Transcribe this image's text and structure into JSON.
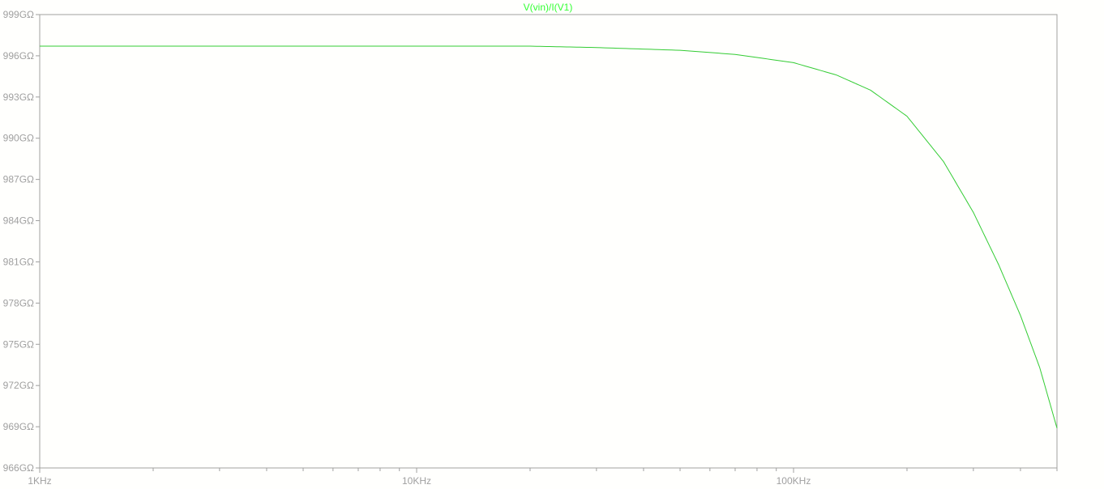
{
  "chart_data": {
    "type": "line",
    "title": "V(vin)/I(V1)",
    "xlabel": "",
    "ylabel": "",
    "x_scale": "log",
    "xlim": [
      1000,
      500000
    ],
    "ylim": [
      966,
      999
    ],
    "x_ticks": [
      {
        "value": 1000,
        "label": "1KHz"
      },
      {
        "value": 10000,
        "label": "10KHz"
      },
      {
        "value": 100000,
        "label": "100KHz"
      }
    ],
    "y_ticks": [
      {
        "value": 999,
        "label": "999GΩ"
      },
      {
        "value": 996,
        "label": "996GΩ"
      },
      {
        "value": 993,
        "label": "993GΩ"
      },
      {
        "value": 990,
        "label": "990GΩ"
      },
      {
        "value": 987,
        "label": "987GΩ"
      },
      {
        "value": 984,
        "label": "984GΩ"
      },
      {
        "value": 981,
        "label": "981GΩ"
      },
      {
        "value": 978,
        "label": "978GΩ"
      },
      {
        "value": 975,
        "label": "975GΩ"
      },
      {
        "value": 972,
        "label": "972GΩ"
      },
      {
        "value": 969,
        "label": "969GΩ"
      },
      {
        "value": 966,
        "label": "966GΩ"
      }
    ],
    "grid": false,
    "colors": {
      "trace": "#33cc33",
      "axis": "#a0a0a0",
      "background": "#fffffd"
    },
    "series": [
      {
        "x": [
          1000,
          2000,
          5000,
          10000,
          20000,
          30000,
          50000,
          70000,
          100000,
          130000,
          160000,
          200000,
          250000,
          300000,
          350000,
          400000,
          450000,
          500000
        ],
        "values": [
          996.7,
          996.7,
          996.7,
          996.7,
          996.7,
          996.6,
          996.4,
          996.1,
          995.5,
          994.6,
          993.5,
          991.6,
          988.3,
          984.6,
          980.8,
          977.1,
          973.3,
          968.9
        ]
      }
    ]
  }
}
